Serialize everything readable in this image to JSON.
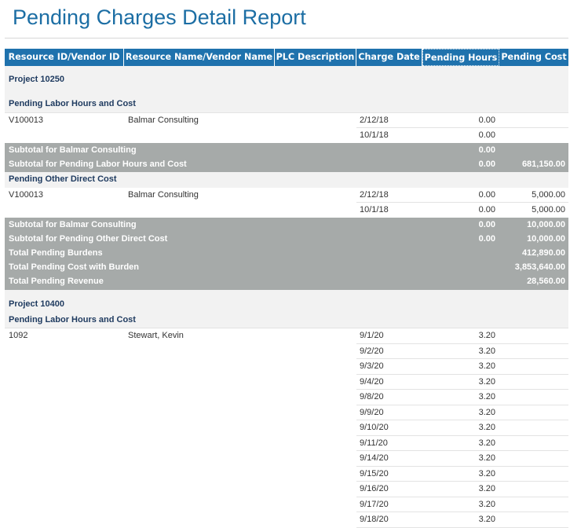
{
  "title": "Pending Charges Detail Report",
  "columns": [
    "Resource ID/Vendor ID",
    "Resource Name/Vendor Name",
    "PLC Description",
    "Charge Date",
    "Pending Hours",
    "Pending Cost"
  ],
  "p1": {
    "project": "Project 10250",
    "labor_group": "Pending Labor Hours and Cost",
    "labor_rows": [
      {
        "id": "V100013",
        "name": "Balmar Consulting",
        "date": "2/12/18",
        "hours": "0.00"
      },
      {
        "id": "",
        "name": "",
        "date": "10/1/18",
        "hours": "0.00"
      }
    ],
    "labor_sub_vendor": {
      "label": "Subtotal for Balmar Consulting",
      "hours": "0.00"
    },
    "labor_sub_group": {
      "label": "Subtotal for Pending Labor Hours and Cost",
      "hours": "0.00",
      "cost": "681,150.00"
    },
    "odc_group": "Pending Other Direct Cost",
    "odc_rows": [
      {
        "id": "V100013",
        "name": "Balmar Consulting",
        "date": "2/12/18",
        "hours": "0.00",
        "cost": "5,000.00"
      },
      {
        "id": "",
        "name": "",
        "date": "10/1/18",
        "hours": "0.00",
        "cost": "5,000.00"
      }
    ],
    "odc_sub_vendor": {
      "label": "Subtotal for Balmar Consulting",
      "hours": "0.00",
      "cost": "10,000.00"
    },
    "odc_sub_group": {
      "label": "Subtotal for Pending Other Direct Cost",
      "hours": "0.00",
      "cost": "10,000.00"
    },
    "burdens": {
      "label": "Total Pending Burdens",
      "cost": "412,890.00"
    },
    "cost_burden": {
      "label": "Total Pending Cost with Burden",
      "cost": "3,853,640.00"
    },
    "revenue": {
      "label": "Total Pending Revenue",
      "cost": "28,560.00"
    }
  },
  "p2": {
    "project": "Project 10400",
    "labor_group": "Pending Labor Hours and Cost",
    "resource_id": "1092",
    "resource_name": "Stewart, Kevin",
    "rows": [
      {
        "date": "9/1/20",
        "hours": "3.20"
      },
      {
        "date": "9/2/20",
        "hours": "3.20"
      },
      {
        "date": "9/3/20",
        "hours": "3.20"
      },
      {
        "date": "9/4/20",
        "hours": "3.20"
      },
      {
        "date": "9/8/20",
        "hours": "3.20"
      },
      {
        "date": "9/9/20",
        "hours": "3.20"
      },
      {
        "date": "9/10/20",
        "hours": "3.20"
      },
      {
        "date": "9/11/20",
        "hours": "3.20"
      },
      {
        "date": "9/14/20",
        "hours": "3.20"
      },
      {
        "date": "9/15/20",
        "hours": "3.20"
      },
      {
        "date": "9/16/20",
        "hours": "3.20"
      },
      {
        "date": "9/17/20",
        "hours": "3.20"
      },
      {
        "date": "9/18/20",
        "hours": "3.20"
      }
    ]
  }
}
